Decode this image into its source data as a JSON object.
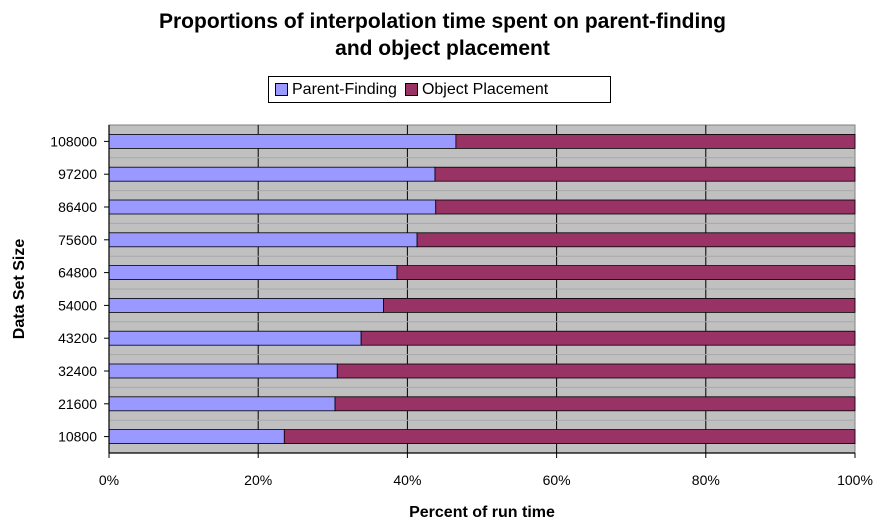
{
  "chart_data": {
    "type": "bar",
    "orientation": "horizontal",
    "stacked": "percent",
    "title_lines": [
      "Proportions of interpolation time spent on parent-finding",
      "and object placement"
    ],
    "xlabel": "Percent of run time",
    "ylabel": "Data Set Size",
    "xlim": [
      0,
      100
    ],
    "x_ticks": [
      "0%",
      "20%",
      "40%",
      "60%",
      "80%",
      "100%"
    ],
    "x_tick_values": [
      0,
      20,
      40,
      60,
      80,
      100
    ],
    "categories": [
      "108000",
      "97200",
      "86400",
      "75600",
      "64800",
      "54000",
      "43200",
      "32400",
      "21600",
      "10800"
    ],
    "series": [
      {
        "name": "Parent-Finding",
        "color": "#9999ff",
        "values": [
          46.5,
          43.7,
          43.8,
          41.3,
          38.6,
          36.8,
          33.8,
          30.6,
          30.3,
          23.5
        ]
      },
      {
        "name": "Object Placement",
        "color": "#993366",
        "values": [
          53.5,
          56.3,
          56.2,
          58.7,
          61.4,
          63.2,
          66.2,
          69.4,
          69.7,
          76.5
        ]
      }
    ],
    "legend_position": "top",
    "grid": true,
    "plot_background": "#c0c0c0"
  }
}
